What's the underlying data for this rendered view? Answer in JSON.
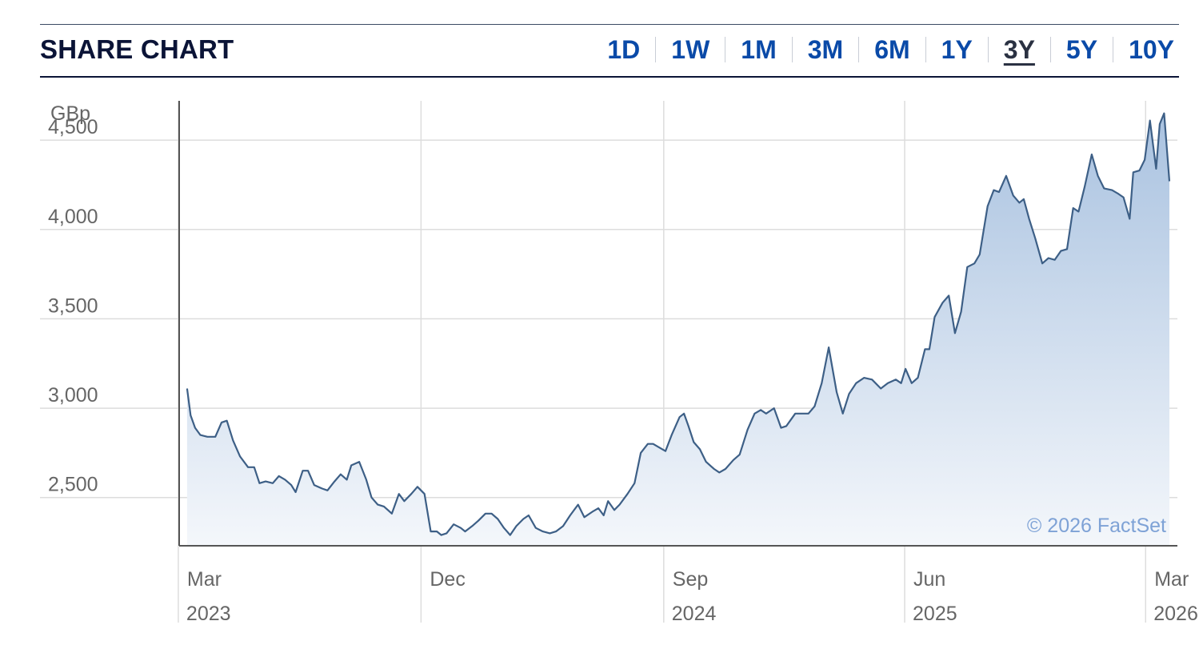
{
  "header": {
    "title": "SHARE CHART",
    "tabs": [
      {
        "label": "1D",
        "active": false
      },
      {
        "label": "1W",
        "active": false
      },
      {
        "label": "1M",
        "active": false
      },
      {
        "label": "3M",
        "active": false
      },
      {
        "label": "6M",
        "active": false
      },
      {
        "label": "1Y",
        "active": false
      },
      {
        "label": "3Y",
        "active": true
      },
      {
        "label": "5Y",
        "active": false
      },
      {
        "label": "10Y",
        "active": false
      }
    ]
  },
  "colors": {
    "title": "#0b1437",
    "tab": "#0a4aa8",
    "tab_active": "#2a3142",
    "line": "#3d5f86",
    "fill_top": "#a9c2e0",
    "fill_bottom": "#f4f7fb",
    "credit": "#7ea2d6"
  },
  "chart_data": {
    "type": "area",
    "unit_label": "GBp",
    "ylim": [
      2230,
      4720
    ],
    "yticks": [
      {
        "value": 2500,
        "label": "2,500"
      },
      {
        "value": 3000,
        "label": "3,000"
      },
      {
        "value": 3500,
        "label": "3,500"
      },
      {
        "value": 4000,
        "label": "4,000"
      },
      {
        "value": 4500,
        "label": "4,500"
      }
    ],
    "xlim": [
      "2023-02-20",
      "2026-03-18"
    ],
    "xticks": [
      {
        "date": "2023-03-01",
        "label": "Mar",
        "year": "2023"
      },
      {
        "date": "2023-12-01",
        "label": "Dec",
        "year": ""
      },
      {
        "date": "2024-09-01",
        "label": "Sep",
        "year": "2024"
      },
      {
        "date": "2025-06-01",
        "label": "Jun",
        "year": "2025"
      },
      {
        "date": "2026-03-01",
        "label": "Mar",
        "year": "2026"
      }
    ],
    "grid": true,
    "credit": "© 2026 FactSet",
    "series": [
      {
        "points": [
          [
            "2023-03-01",
            3110
          ],
          [
            "2023-03-05",
            2960
          ],
          [
            "2023-03-10",
            2890
          ],
          [
            "2023-03-16",
            2850
          ],
          [
            "2023-03-24",
            2840
          ],
          [
            "2023-04-02",
            2840
          ],
          [
            "2023-04-09",
            2920
          ],
          [
            "2023-04-15",
            2930
          ],
          [
            "2023-04-22",
            2820
          ],
          [
            "2023-04-30",
            2730
          ],
          [
            "2023-05-09",
            2670
          ],
          [
            "2023-05-16",
            2670
          ],
          [
            "2023-05-22",
            2580
          ],
          [
            "2023-05-29",
            2590
          ],
          [
            "2023-06-06",
            2580
          ],
          [
            "2023-06-13",
            2620
          ],
          [
            "2023-06-20",
            2600
          ],
          [
            "2023-06-27",
            2570
          ],
          [
            "2023-07-02",
            2530
          ],
          [
            "2023-07-10",
            2650
          ],
          [
            "2023-07-16",
            2650
          ],
          [
            "2023-07-23",
            2570
          ],
          [
            "2023-08-01",
            2550
          ],
          [
            "2023-08-07",
            2540
          ],
          [
            "2023-08-15",
            2590
          ],
          [
            "2023-08-22",
            2630
          ],
          [
            "2023-08-29",
            2600
          ],
          [
            "2023-09-03",
            2680
          ],
          [
            "2023-09-12",
            2700
          ],
          [
            "2023-09-20",
            2600
          ],
          [
            "2023-09-26",
            2500
          ],
          [
            "2023-10-03",
            2460
          ],
          [
            "2023-10-10",
            2450
          ],
          [
            "2023-10-19",
            2410
          ],
          [
            "2023-10-27",
            2520
          ],
          [
            "2023-11-02",
            2480
          ],
          [
            "2023-11-10",
            2520
          ],
          [
            "2023-11-17",
            2560
          ],
          [
            "2023-11-25",
            2520
          ],
          [
            "2023-12-02",
            2310
          ],
          [
            "2023-12-09",
            2310
          ],
          [
            "2023-12-14",
            2290
          ],
          [
            "2023-12-20",
            2300
          ],
          [
            "2023-12-28",
            2350
          ],
          [
            "2024-01-05",
            2330
          ],
          [
            "2024-01-10",
            2310
          ],
          [
            "2024-01-18",
            2340
          ],
          [
            "2024-01-25",
            2370
          ],
          [
            "2024-02-02",
            2410
          ],
          [
            "2024-02-09",
            2410
          ],
          [
            "2024-02-16",
            2380
          ],
          [
            "2024-02-23",
            2330
          ],
          [
            "2024-03-01",
            2290
          ],
          [
            "2024-03-08",
            2340
          ],
          [
            "2024-03-16",
            2380
          ],
          [
            "2024-03-22",
            2400
          ],
          [
            "2024-03-30",
            2330
          ],
          [
            "2024-04-07",
            2310
          ],
          [
            "2024-04-15",
            2300
          ],
          [
            "2024-04-22",
            2310
          ],
          [
            "2024-04-30",
            2340
          ],
          [
            "2024-05-08",
            2400
          ],
          [
            "2024-05-17",
            2460
          ],
          [
            "2024-05-24",
            2390
          ],
          [
            "2024-06-02",
            2420
          ],
          [
            "2024-06-09",
            2440
          ],
          [
            "2024-06-15",
            2400
          ],
          [
            "2024-06-20",
            2480
          ],
          [
            "2024-06-27",
            2430
          ],
          [
            "2024-07-03",
            2460
          ],
          [
            "2024-07-12",
            2520
          ],
          [
            "2024-07-20",
            2580
          ],
          [
            "2024-07-27",
            2750
          ],
          [
            "2024-08-04",
            2800
          ],
          [
            "2024-08-10",
            2800
          ],
          [
            "2024-08-17",
            2780
          ],
          [
            "2024-08-24",
            2760
          ],
          [
            "2024-08-31",
            2850
          ],
          [
            "2024-09-09",
            2950
          ],
          [
            "2024-09-14",
            2970
          ],
          [
            "2024-09-19",
            2900
          ],
          [
            "2024-09-25",
            2810
          ],
          [
            "2024-10-02",
            2770
          ],
          [
            "2024-10-09",
            2700
          ],
          [
            "2024-10-18",
            2660
          ],
          [
            "2024-10-24",
            2640
          ],
          [
            "2024-10-31",
            2660
          ],
          [
            "2024-11-09",
            2710
          ],
          [
            "2024-11-16",
            2740
          ],
          [
            "2024-11-25",
            2880
          ],
          [
            "2024-12-03",
            2970
          ],
          [
            "2024-12-10",
            2990
          ],
          [
            "2024-12-16",
            2970
          ],
          [
            "2024-12-25",
            3000
          ],
          [
            "2025-01-02",
            2890
          ],
          [
            "2025-01-08",
            2900
          ],
          [
            "2025-01-18",
            2970
          ],
          [
            "2025-01-26",
            2970
          ],
          [
            "2025-02-02",
            2970
          ],
          [
            "2025-02-09",
            3010
          ],
          [
            "2025-02-17",
            3140
          ],
          [
            "2025-02-25",
            3340
          ],
          [
            "2025-03-06",
            3090
          ],
          [
            "2025-03-13",
            2970
          ],
          [
            "2025-03-20",
            3080
          ],
          [
            "2025-03-28",
            3140
          ],
          [
            "2025-04-06",
            3170
          ],
          [
            "2025-04-15",
            3160
          ],
          [
            "2025-04-25",
            3110
          ],
          [
            "2025-05-03",
            3140
          ],
          [
            "2025-05-12",
            3160
          ],
          [
            "2025-05-18",
            3140
          ],
          [
            "2025-05-23",
            3220
          ],
          [
            "2025-05-30",
            3140
          ],
          [
            "2025-06-06",
            3170
          ],
          [
            "2025-06-14",
            3330
          ],
          [
            "2025-06-19",
            3330
          ],
          [
            "2025-06-25",
            3510
          ],
          [
            "2025-07-04",
            3590
          ],
          [
            "2025-07-11",
            3630
          ],
          [
            "2025-07-18",
            3420
          ],
          [
            "2025-07-25",
            3540
          ],
          [
            "2025-08-01",
            3790
          ],
          [
            "2025-08-09",
            3810
          ],
          [
            "2025-08-15",
            3860
          ],
          [
            "2025-08-24",
            4130
          ],
          [
            "2025-08-31",
            4220
          ],
          [
            "2025-09-06",
            4210
          ],
          [
            "2025-09-14",
            4300
          ],
          [
            "2025-09-22",
            4190
          ],
          [
            "2025-09-29",
            4150
          ],
          [
            "2025-10-04",
            4170
          ],
          [
            "2025-10-10",
            4060
          ],
          [
            "2025-10-17",
            3950
          ],
          [
            "2025-10-25",
            3810
          ],
          [
            "2025-11-01",
            3840
          ],
          [
            "2025-11-08",
            3830
          ],
          [
            "2025-11-15",
            3880
          ],
          [
            "2025-11-22",
            3890
          ],
          [
            "2025-11-29",
            4120
          ],
          [
            "2025-12-05",
            4100
          ],
          [
            "2025-12-12",
            4240
          ],
          [
            "2025-12-20",
            4420
          ],
          [
            "2025-12-27",
            4300
          ],
          [
            "2026-01-03",
            4230
          ],
          [
            "2026-01-12",
            4220
          ],
          [
            "2026-01-19",
            4200
          ],
          [
            "2026-01-25",
            4180
          ],
          [
            "2026-02-01",
            4060
          ],
          [
            "2026-02-05",
            4320
          ],
          [
            "2026-02-12",
            4330
          ],
          [
            "2026-02-18",
            4390
          ],
          [
            "2026-02-24",
            4610
          ],
          [
            "2026-03-03",
            4340
          ],
          [
            "2026-03-07",
            4590
          ],
          [
            "2026-03-12",
            4650
          ],
          [
            "2026-03-18",
            4270
          ]
        ]
      }
    ]
  }
}
